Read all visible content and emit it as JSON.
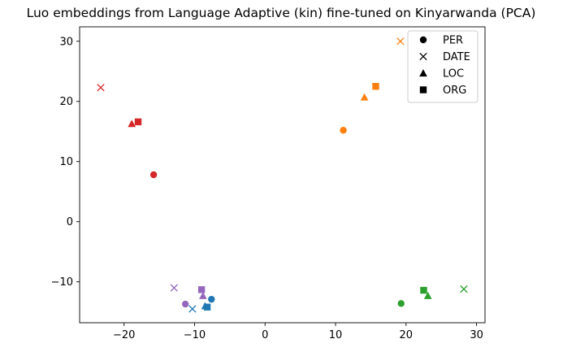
{
  "chart_data": {
    "type": "scatter",
    "title": "Luo embeddings from Language Adaptive (kin) fine-tuned on Kinyarwanda (PCA)",
    "xlabel": "",
    "ylabel": "",
    "xlim": [
      -26.3,
      31.2
    ],
    "ylim": [
      -16.8,
      32.4
    ],
    "xticks": [
      -20,
      -10,
      0,
      10,
      20,
      30
    ],
    "yticks": [
      -10,
      0,
      10,
      20,
      30
    ],
    "xtick_labels": [
      "−20",
      "−10",
      "0",
      "10",
      "20",
      "30"
    ],
    "ytick_labels": [
      "−10",
      "0",
      "10",
      "20",
      "30"
    ],
    "grid": false,
    "legend": {
      "position": "top-right",
      "entries": [
        {
          "label": "PER",
          "marker": "circle"
        },
        {
          "label": "DATE",
          "marker": "x"
        },
        {
          "label": "LOC",
          "marker": "triangle"
        },
        {
          "label": "ORG",
          "marker": "square"
        }
      ]
    },
    "points": [
      {
        "x": -15.8,
        "y": 7.8,
        "marker": "circle",
        "color": "#d62728"
      },
      {
        "x": -23.3,
        "y": 22.3,
        "marker": "x",
        "color": "#d62728"
      },
      {
        "x": -18.9,
        "y": 16.3,
        "marker": "triangle",
        "color": "#d62728"
      },
      {
        "x": -18.0,
        "y": 16.6,
        "marker": "square",
        "color": "#d62728"
      },
      {
        "x": 11.1,
        "y": 15.2,
        "marker": "circle",
        "color": "#ff7f0e"
      },
      {
        "x": 19.2,
        "y": 30.0,
        "marker": "x",
        "color": "#ff7f0e"
      },
      {
        "x": 14.1,
        "y": 20.7,
        "marker": "triangle",
        "color": "#ff7f0e"
      },
      {
        "x": 15.7,
        "y": 22.5,
        "marker": "square",
        "color": "#ff7f0e"
      },
      {
        "x": 19.3,
        "y": -13.6,
        "marker": "circle",
        "color": "#2ca02c"
      },
      {
        "x": 28.2,
        "y": -11.2,
        "marker": "x",
        "color": "#2ca02c"
      },
      {
        "x": 23.1,
        "y": -12.3,
        "marker": "triangle",
        "color": "#2ca02c"
      },
      {
        "x": 22.5,
        "y": -11.4,
        "marker": "square",
        "color": "#2ca02c"
      },
      {
        "x": -11.3,
        "y": -13.7,
        "marker": "circle",
        "color": "#9467bd"
      },
      {
        "x": -12.9,
        "y": -11.0,
        "marker": "x",
        "color": "#9467bd"
      },
      {
        "x": -8.8,
        "y": -12.3,
        "marker": "triangle",
        "color": "#9467bd"
      },
      {
        "x": -9.0,
        "y": -11.3,
        "marker": "square",
        "color": "#9467bd"
      },
      {
        "x": -7.6,
        "y": -12.9,
        "marker": "circle",
        "color": "#1f77b4"
      },
      {
        "x": -10.3,
        "y": -14.5,
        "marker": "x",
        "color": "#1f77b4"
      },
      {
        "x": -8.5,
        "y": -14.0,
        "marker": "triangle",
        "color": "#1f77b4"
      },
      {
        "x": -8.2,
        "y": -14.2,
        "marker": "square",
        "color": "#1f77b4"
      }
    ]
  }
}
